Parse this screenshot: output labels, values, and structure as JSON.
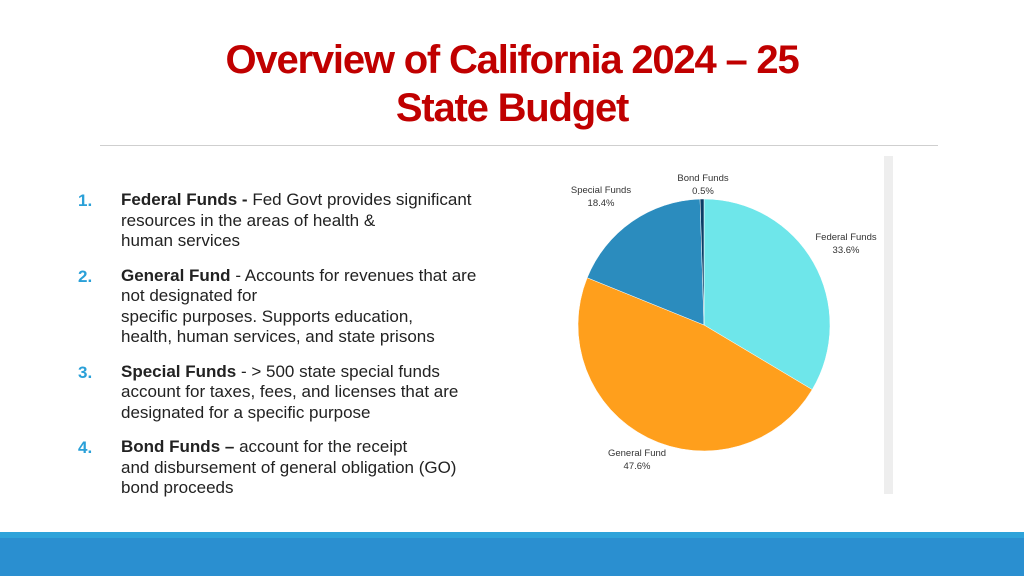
{
  "slide": {
    "title_line1": "Overview of California 2024 – 25",
    "title_line2": "State Budget"
  },
  "items": [
    {
      "number": "1.",
      "term": "Federal Funds -",
      "lines": [
        "Fed Govt provides significant",
        "resources in the areas of health &",
        "human services"
      ]
    },
    {
      "number": "2.",
      "term": "General Fund",
      "lines": [
        "- Accounts for revenues that are",
        "not designated for",
        "specific purposes. Supports education,",
        "health, human services, and state prisons"
      ]
    },
    {
      "number": "3.",
      "term": "Special Funds",
      "lines": [
        "- > 500 state special funds",
        "account for taxes, fees, and licenses that are",
        "designated for a specific purpose"
      ]
    },
    {
      "number": "4.",
      "term": "Bond Funds –",
      "lines": [
        "account for the receipt",
        "and disbursement of general obligation (GO)",
        "bond proceeds"
      ]
    }
  ],
  "chart_data": {
    "type": "pie",
    "title": "",
    "start": "12 o'clock, clockwise",
    "slices": [
      {
        "label": "Federal Funds",
        "value": 33.6,
        "display": "33.6%",
        "color": "#6ee6ea"
      },
      {
        "label": "General Fund",
        "value": 47.6,
        "display": "47.6%",
        "color": "#ff9f1c"
      },
      {
        "label": "Special Funds",
        "value": 18.4,
        "display": "18.4%",
        "color": "#2b8cbe"
      },
      {
        "label": "Bond Funds",
        "value": 0.5,
        "display": "0.5%",
        "color": "#0a3d66"
      }
    ],
    "legend": "none (slice labels outside pie)"
  }
}
